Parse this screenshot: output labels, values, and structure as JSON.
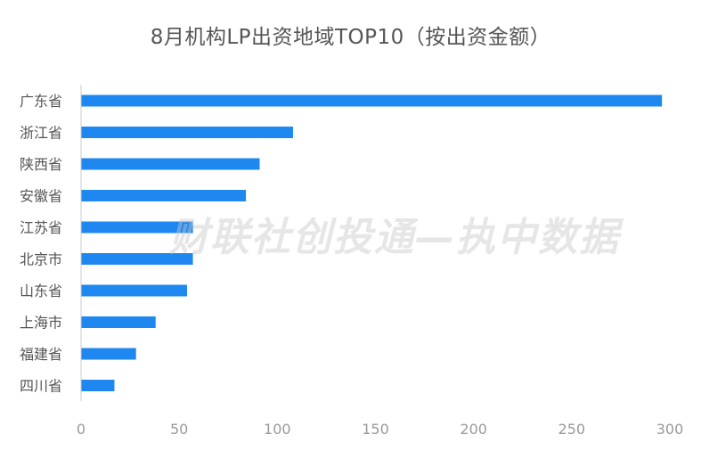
{
  "chart_data": {
    "type": "bar",
    "orientation": "horizontal",
    "title": "8月机构LP出资地域TOP10（按出资金额）",
    "categories": [
      "广东省",
      "浙江省",
      "陕西省",
      "安徽省",
      "江苏省",
      "北京市",
      "山东省",
      "上海市",
      "福建省",
      "四川省"
    ],
    "values": [
      296,
      108,
      91,
      84,
      57,
      57,
      54,
      38,
      28,
      17
    ],
    "xlim": [
      0,
      300
    ],
    "xticks": [
      0,
      50,
      100,
      150,
      200,
      250,
      300
    ],
    "grid": false,
    "legend": "none",
    "bar_color": "#1e88f0",
    "axis_color": "#cccccc",
    "label_color": "#555555",
    "tick_color": "#999999"
  },
  "watermark": "财联社创投通—执中数据"
}
